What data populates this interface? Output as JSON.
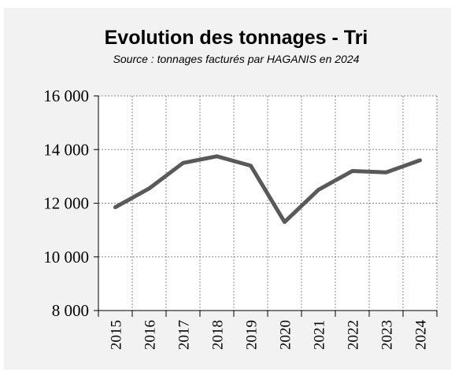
{
  "chart_data": {
    "type": "line",
    "title": "Evolution des tonnages - Tri",
    "subtitle": "Source : tonnages facturés par HAGANIS en 2024",
    "categories": [
      "2015",
      "2016",
      "2017",
      "2018",
      "2019",
      "2020",
      "2021",
      "2022",
      "2023",
      "2024"
    ],
    "values": [
      11850,
      12550,
      13500,
      13750,
      13400,
      11300,
      12500,
      13200,
      13150,
      13600
    ],
    "color": "#595959",
    "ylim": [
      8000,
      16000
    ],
    "yticks": [
      {
        "value": 8000,
        "label": "8 000"
      },
      {
        "value": 10000,
        "label": "10 000"
      },
      {
        "value": 12000,
        "label": "12 000"
      },
      {
        "value": 14000,
        "label": "14 000"
      },
      {
        "value": 16000,
        "label": "16 000"
      }
    ],
    "grid": true
  }
}
